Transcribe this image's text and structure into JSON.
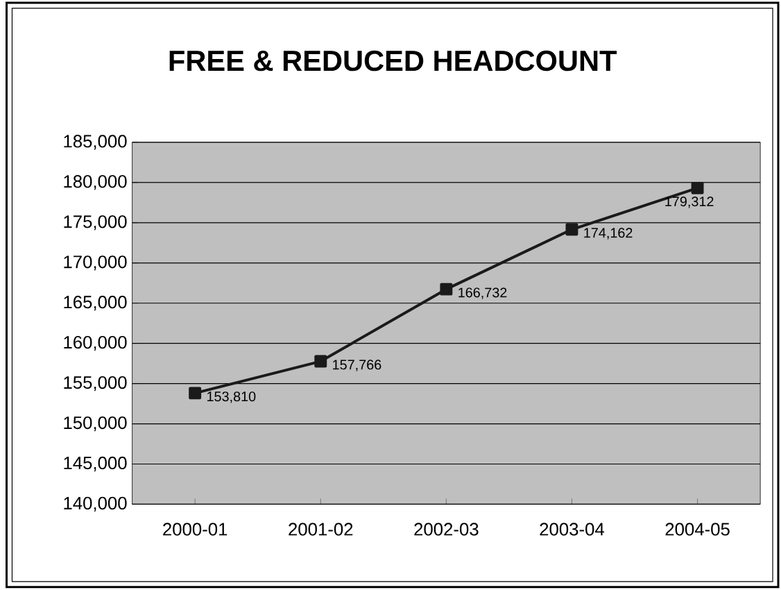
{
  "chart_data": {
    "type": "line",
    "title": "FREE & REDUCED HEADCOUNT",
    "categories": [
      "2000-01",
      "2001-02",
      "2002-03",
      "2003-04",
      "2004-05"
    ],
    "series": [
      {
        "color": "#1a1a1a",
        "values": [
          153810,
          157766,
          166732,
          174162,
          179312
        ],
        "value_labels": [
          "153,810",
          "157,766",
          "166,732",
          "174,162",
          "179,312"
        ]
      }
    ],
    "ylim": [
      140000,
      185000
    ],
    "yticks": [
      {
        "value": 140000,
        "label": "140,000"
      },
      {
        "value": 145000,
        "label": "145,000"
      },
      {
        "value": 150000,
        "label": "150,000"
      },
      {
        "value": 155000,
        "label": "155,000"
      },
      {
        "value": 160000,
        "label": "160,000"
      },
      {
        "value": 165000,
        "label": "165,000"
      },
      {
        "value": 170000,
        "label": "170,000"
      },
      {
        "value": 175000,
        "label": "175,000"
      },
      {
        "value": 180000,
        "label": "180,000"
      },
      {
        "value": 185000,
        "label": "185,000"
      }
    ],
    "grid": "y",
    "marker": "square",
    "line_style": "solid"
  }
}
